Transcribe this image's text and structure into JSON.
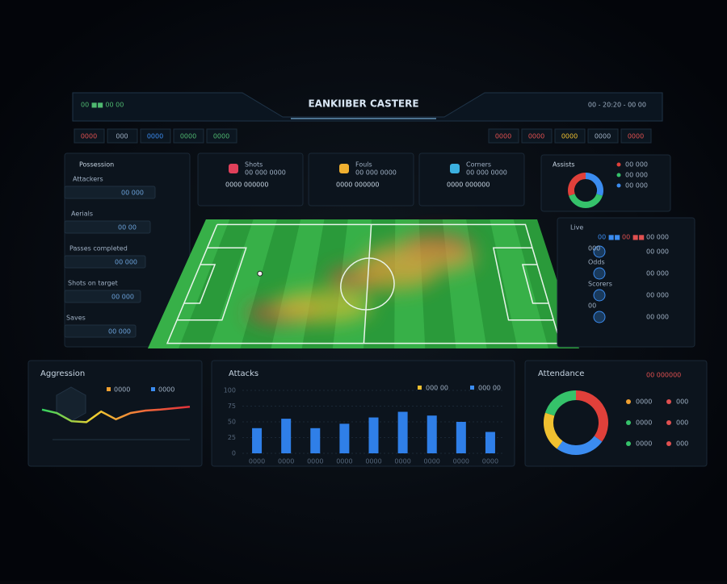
{
  "header": {
    "title": "EANKIIBER CASTERE",
    "left_status": "00 ■■ 00 00",
    "right_status": "00 - 20:20 - 00 00",
    "left_tabs": [
      "0000",
      "000",
      "0000",
      "0000",
      "0000"
    ],
    "right_tabs": [
      "0000",
      "0000",
      "0000",
      "0000",
      "0000"
    ]
  },
  "left_panel": {
    "title": "Possession",
    "rows": [
      {
        "label": "Attackers",
        "value": "00 000"
      },
      {
        "label": "Aerials",
        "value": "00 00"
      },
      {
        "label": "Passes completed",
        "value": "00 000"
      },
      {
        "label": "Shots on target",
        "value": "00 000"
      },
      {
        "label": "Saves",
        "value": "00 000"
      }
    ]
  },
  "stat_cards": [
    {
      "label": "Shots",
      "sub": "00 000 0000",
      "value": "0000 000000"
    },
    {
      "label": "Fouls",
      "sub": "00 000 0000",
      "value": "0000 000000"
    },
    {
      "label": "Corners",
      "sub": "00 000 0000",
      "value": "0000 000000"
    }
  ],
  "small_donut": {
    "title": "Assists",
    "legend": [
      "00 000",
      "00 000",
      "00 000"
    ],
    "values": [
      30,
      40,
      30
    ],
    "colors": [
      "#3b8cf0",
      "#35c26a",
      "#e0403a"
    ]
  },
  "right_list": {
    "title": "Live",
    "top": [
      "00 ■■",
      "00 ■■",
      "00 000"
    ],
    "items": [
      {
        "label": "000",
        "value": "00 000"
      },
      {
        "label": "Odds",
        "value": "00 000"
      },
      {
        "label": "Scorers",
        "value": "00 000"
      },
      {
        "label": "00",
        "value": "00 000"
      }
    ]
  },
  "line_panel": {
    "title": "Aggression",
    "legend": [
      "0000",
      "0000"
    ],
    "legend_colors": [
      "#f0a030",
      "#3b8cf0"
    ],
    "values": [
      62,
      55,
      38,
      36,
      58,
      42,
      55,
      60,
      62,
      65,
      68
    ],
    "ylim": [
      0,
      100
    ]
  },
  "bar_panel": {
    "title": "Attacks",
    "legend": [
      "000 00",
      "000 00"
    ],
    "legend_colors": [
      "#f0c030",
      "#3b8cf0"
    ],
    "color": "#2f7fe8",
    "categories": [
      "0000",
      "0000",
      "0000",
      "0000",
      "0000",
      "0000",
      "0000",
      "0000",
      "0000"
    ],
    "values": [
      40,
      55,
      40,
      47,
      57,
      66,
      60,
      50,
      34
    ],
    "ylim": [
      0,
      100
    ],
    "yticks": [
      0,
      25,
      50,
      75,
      100
    ]
  },
  "large_donut": {
    "title": "Attendance",
    "header_right": "00 000000",
    "values": [
      35,
      25,
      20,
      20
    ],
    "colors": [
      "#e0403a",
      "#3b8cf0",
      "#f0c030",
      "#35c26a"
    ],
    "legend": [
      {
        "label": "0000",
        "value": "000"
      },
      {
        "label": "0000",
        "value": "000"
      },
      {
        "label": "0000",
        "value": "000"
      }
    ],
    "legend_colors": [
      "#f0a030",
      "#35c26a",
      "#35c26a"
    ]
  }
}
